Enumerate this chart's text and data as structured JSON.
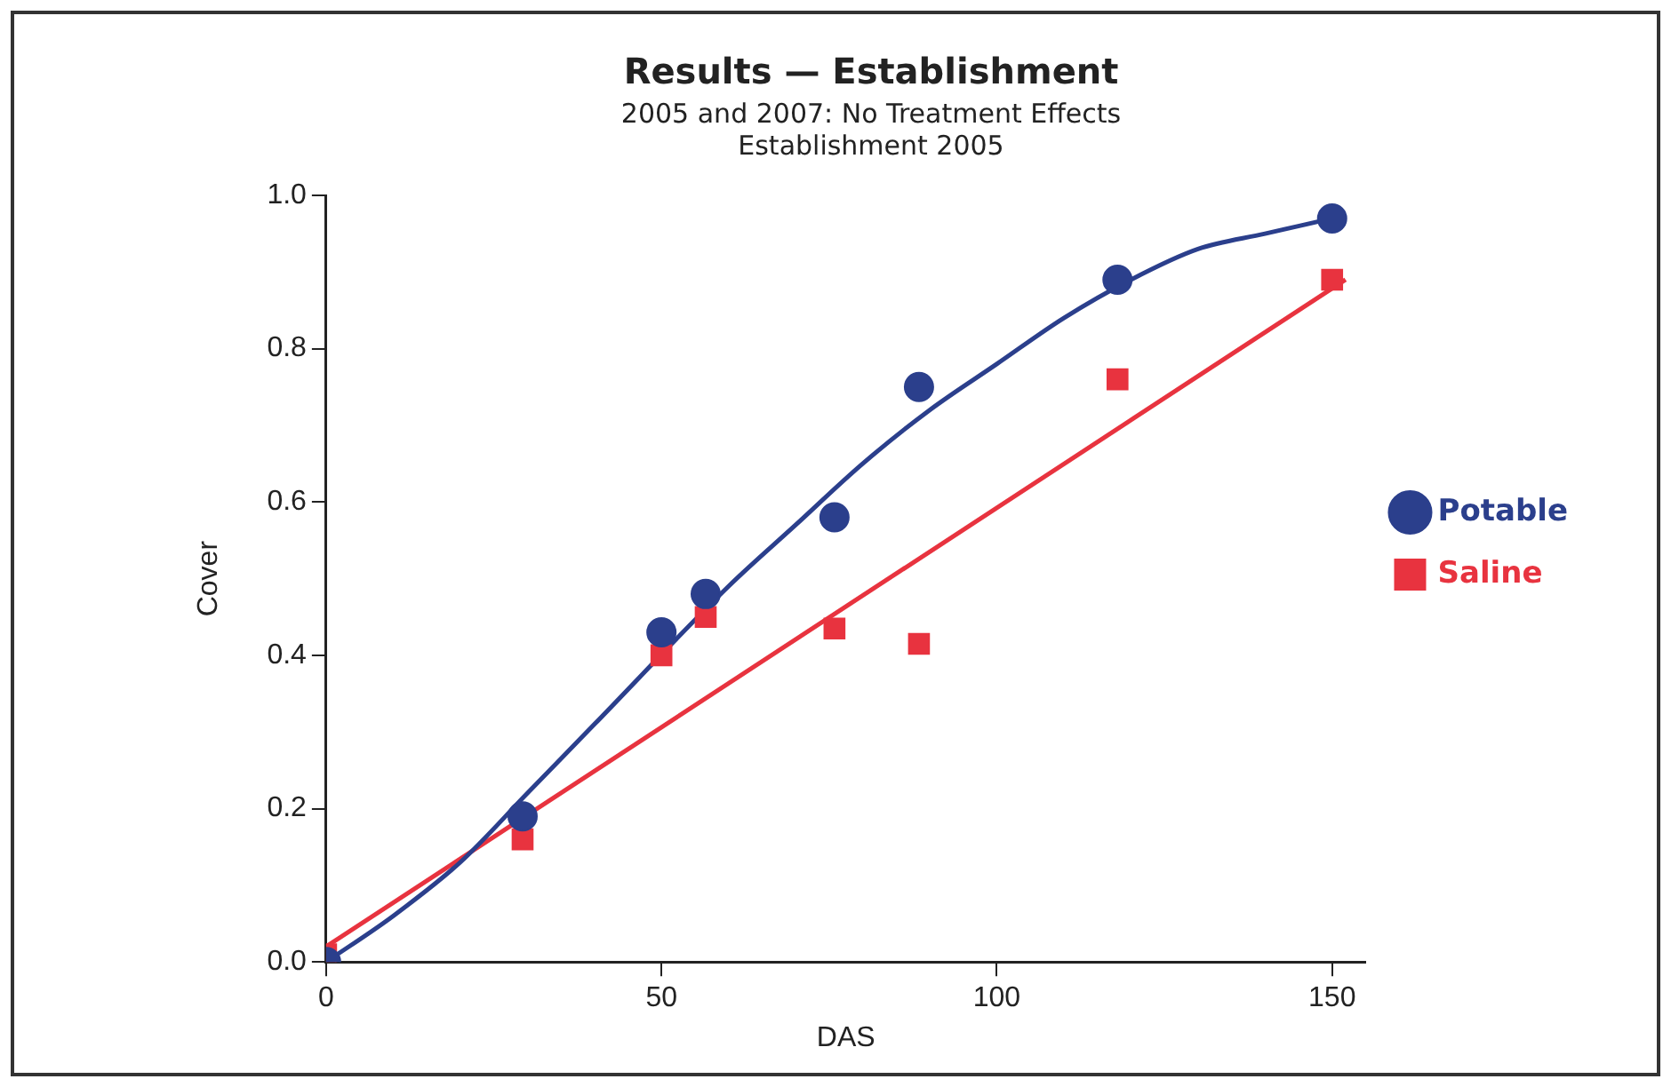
{
  "chart_data": {
    "type": "scatter",
    "title": "Results — Establishment",
    "subtitle": "2005 and 2007: No Treatment Effects\nEstablishment 2005",
    "xlabel": "DAS",
    "ylabel": "Cover",
    "x": [
      0,
      29.3,
      50,
      56.6,
      75.8,
      88.4,
      118,
      150
    ],
    "series": [
      {
        "name": "Potable",
        "color": "#2b3f8c",
        "marker": "circle",
        "values": [
          0.0,
          0.19,
          0.43,
          0.48,
          0.58,
          0.75,
          0.89,
          0.97
        ]
      },
      {
        "name": "Saline",
        "color": "#e8333f",
        "marker": "square",
        "values": [
          0.01,
          0.16,
          0.4,
          0.45,
          0.435,
          0.415,
          0.76,
          0.89
        ]
      },
      {
        "type": "line",
        "color": "#2b3f8c",
        "marker": "none",
        "x": [
          0,
          10,
          20,
          30,
          40,
          60,
          70,
          80,
          90,
          100,
          110,
          120,
          130,
          140,
          150
        ],
        "values": [
          0.0,
          0.06,
          0.13,
          0.22,
          0.31,
          0.49,
          0.57,
          0.65,
          0.72,
          0.78,
          0.84,
          0.89,
          0.93,
          0.95,
          0.97
        ]
      },
      {
        "type": "line",
        "color": "#e8333f",
        "marker": "none",
        "x": [
          0,
          152
        ],
        "values": [
          0.02,
          0.89
        ]
      }
    ],
    "xlim": [
      0,
      155
    ],
    "xticks": [
      0,
      50,
      100,
      150
    ],
    "ylim": [
      0,
      1
    ],
    "yticks": [
      {
        "value": 0,
        "label": "0.0"
      },
      0.2,
      0.4,
      0.6,
      0.8,
      {
        "value": 1,
        "label": "1.0"
      }
    ],
    "grid": false,
    "legend": "right"
  }
}
